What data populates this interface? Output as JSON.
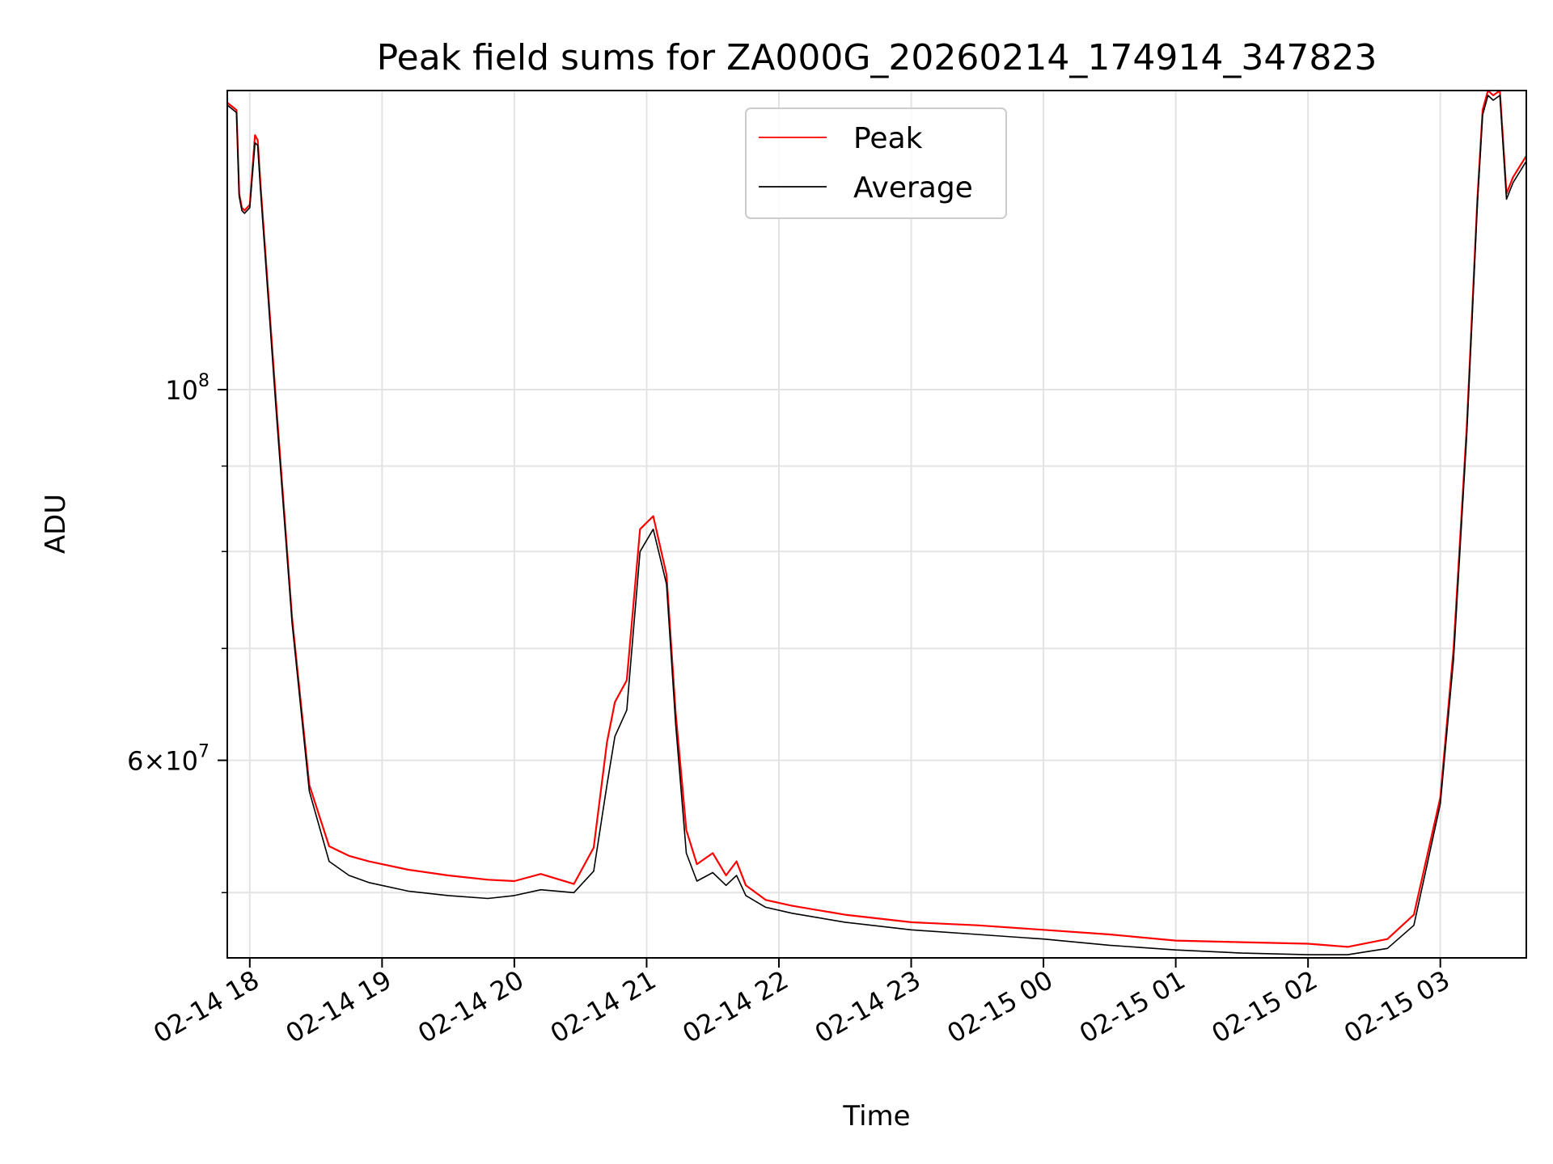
{
  "chart_data": {
    "type": "line",
    "title": "Peak field sums for ZA000G_20260214_174914_347823",
    "xlabel": "Time",
    "ylabel": "ADU",
    "yscale": "log",
    "xlim_hours": [
      17.83,
      27.65
    ],
    "ylim": [
      45700000,
      151000000
    ],
    "grid": true,
    "legend_position": "upper-center",
    "x_ticks": [
      {
        "hour": 18,
        "label": "02-14 18"
      },
      {
        "hour": 19,
        "label": "02-14 19"
      },
      {
        "hour": 20,
        "label": "02-14 20"
      },
      {
        "hour": 21,
        "label": "02-14 21"
      },
      {
        "hour": 22,
        "label": "02-14 22"
      },
      {
        "hour": 23,
        "label": "02-14 23"
      },
      {
        "hour": 24,
        "label": "02-15 00"
      },
      {
        "hour": 25,
        "label": "02-15 01"
      },
      {
        "hour": 26,
        "label": "02-15 02"
      },
      {
        "hour": 27,
        "label": "02-15 03"
      }
    ],
    "y_major_ticks": [
      {
        "value": 100000000,
        "base": "10",
        "exp": "8",
        "mantissa": ""
      },
      {
        "value": 60000000,
        "base": "10",
        "exp": "7",
        "mantissa": "6"
      }
    ],
    "y_minor_gridlines": [
      50000000,
      70000000,
      80000000,
      90000000
    ],
    "series": [
      {
        "name": "Peak",
        "color": "#ff0000",
        "x_hours": [
          17.83,
          17.9,
          17.92,
          17.94,
          17.96,
          18.0,
          18.04,
          18.06,
          18.08,
          18.2,
          18.32,
          18.45,
          18.6,
          18.75,
          18.9,
          19.2,
          19.5,
          19.8,
          20.0,
          20.2,
          20.45,
          20.6,
          20.7,
          20.76,
          20.85,
          20.95,
          21.05,
          21.15,
          21.22,
          21.3,
          21.38,
          21.5,
          21.6,
          21.68,
          21.75,
          21.9,
          22.1,
          22.5,
          23.0,
          23.5,
          24.0,
          24.5,
          25.0,
          25.5,
          26.0,
          26.3,
          26.6,
          26.8,
          27.0,
          27.1,
          27.2,
          27.28,
          27.32,
          27.36,
          27.4,
          27.45,
          27.5,
          27.55,
          27.65
        ],
        "values": [
          148500000,
          147000000,
          131000000,
          128500000,
          128000000,
          129000000,
          142000000,
          141000000,
          133000000,
          98000000,
          73000000,
          58000000,
          53300000,
          52600000,
          52200000,
          51600000,
          51200000,
          50900000,
          50800000,
          51300000,
          50600000,
          53200000,
          61500000,
          65000000,
          67000000,
          82500000,
          84000000,
          77500000,
          64000000,
          54500000,
          52000000,
          52800000,
          51200000,
          52200000,
          50500000,
          49500000,
          49100000,
          48500000,
          48000000,
          47800000,
          47500000,
          47200000,
          46800000,
          46700000,
          46600000,
          46400000,
          46900000,
          48500000,
          57000000,
          70000000,
          95000000,
          130000000,
          147000000,
          151000000,
          150000000,
          151000000,
          131000000,
          134000000,
          138000000
        ]
      },
      {
        "name": "Average",
        "color": "#000000",
        "x_hours": [
          17.83,
          17.9,
          17.92,
          17.94,
          17.96,
          18.0,
          18.04,
          18.06,
          18.08,
          18.2,
          18.32,
          18.45,
          18.6,
          18.75,
          18.9,
          19.2,
          19.5,
          19.8,
          20.0,
          20.2,
          20.45,
          20.6,
          20.7,
          20.76,
          20.85,
          20.95,
          21.05,
          21.15,
          21.22,
          21.3,
          21.38,
          21.5,
          21.6,
          21.68,
          21.75,
          21.9,
          22.1,
          22.5,
          23.0,
          23.5,
          24.0,
          24.5,
          25.0,
          25.5,
          26.0,
          26.3,
          26.6,
          26.8,
          27.0,
          27.1,
          27.2,
          27.28,
          27.32,
          27.36,
          27.4,
          27.45,
          27.5,
          27.55,
          27.65
        ],
        "values": [
          148000000,
          146500000,
          130500000,
          128000000,
          127500000,
          128500000,
          140500000,
          140000000,
          132000000,
          97000000,
          72500000,
          57500000,
          52200000,
          51200000,
          50700000,
          50100000,
          49800000,
          49600000,
          49800000,
          50200000,
          50000000,
          51500000,
          58000000,
          62000000,
          64300000,
          80000000,
          82500000,
          76500000,
          63000000,
          52800000,
          50800000,
          51400000,
          50500000,
          51200000,
          49800000,
          49000000,
          48600000,
          48000000,
          47500000,
          47200000,
          46900000,
          46500000,
          46200000,
          46000000,
          45900000,
          45900000,
          46300000,
          47800000,
          56500000,
          69000000,
          94000000,
          129000000,
          146000000,
          150000000,
          149000000,
          150000000,
          130000000,
          133000000,
          137000000
        ]
      }
    ]
  }
}
